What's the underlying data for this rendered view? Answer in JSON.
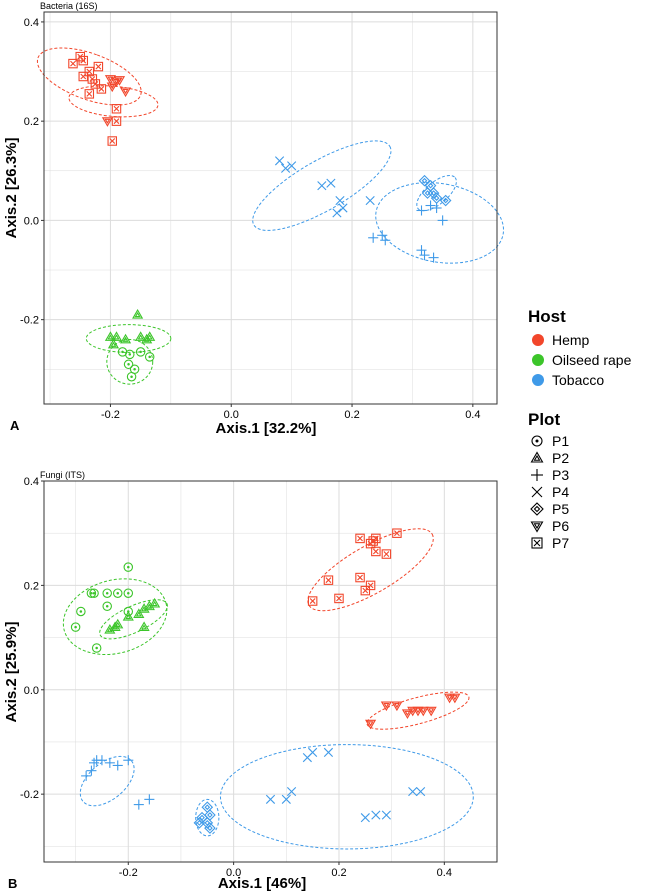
{
  "colors": {
    "hemp": "#F2462B",
    "oilseed": "#3CC52A",
    "tobacco": "#3F9AE8",
    "grid": "#dcdcdc",
    "frame": "#333333"
  },
  "legend": {
    "host_title": "Host",
    "hosts": [
      {
        "name": "Hemp",
        "color": "#F2462B"
      },
      {
        "name": "Oilseed rape",
        "color": "#3CC52A"
      },
      {
        "name": "Tobacco",
        "color": "#3F9AE8"
      }
    ],
    "plot_title": "Plot",
    "plots": [
      {
        "name": "P1",
        "shape": "circle-dot"
      },
      {
        "name": "P2",
        "shape": "triangle-up"
      },
      {
        "name": "P3",
        "shape": "plus"
      },
      {
        "name": "P4",
        "shape": "cross"
      },
      {
        "name": "P5",
        "shape": "diamond-plus"
      },
      {
        "name": "P6",
        "shape": "triangle-down"
      },
      {
        "name": "P7",
        "shape": "square-x"
      }
    ]
  },
  "chart_data": [
    {
      "panel": "A",
      "title": "Bacteria (16S)",
      "type": "scatter",
      "xlabel": "Axis.1   [32.2%]",
      "ylabel": "Axis.2   [26.3%]",
      "xlim": [
        -0.31,
        0.44
      ],
      "ylim": [
        -0.37,
        0.42
      ],
      "xticks": [
        -0.2,
        0.0,
        0.2,
        0.4
      ],
      "yticks": [
        -0.2,
        0.0,
        0.2,
        0.4
      ],
      "xtick_labels": [
        "-0.2",
        "0.0",
        "0.2",
        "0.4"
      ],
      "ytick_labels": [
        "-0.2",
        "0.0",
        "0.2",
        "0.4"
      ],
      "grid": true,
      "ellipses": [
        {
          "host": "Hemp",
          "cx": -0.235,
          "cy": 0.29,
          "rx": 0.038,
          "ry": 0.11,
          "angle": -70
        },
        {
          "host": "Hemp",
          "cx": -0.195,
          "cy": 0.24,
          "rx": 0.025,
          "ry": 0.09,
          "angle": -85
        },
        {
          "host": "Tobacco",
          "cx": 0.15,
          "cy": 0.07,
          "rx": 0.13,
          "ry": 0.05,
          "angle": -30
        },
        {
          "host": "Tobacco",
          "cx": 0.345,
          "cy": -0.005,
          "rx": 0.065,
          "ry": 0.13,
          "angle": -80
        },
        {
          "host": "Tobacco",
          "cx": 0.34,
          "cy": 0.055,
          "rx": 0.04,
          "ry": 0.022,
          "angle": -40
        },
        {
          "host": "Oilseed rape",
          "cx": -0.17,
          "cy": -0.238,
          "rx": 0.07,
          "ry": 0.028,
          "angle": 0
        },
        {
          "host": "Oilseed rape",
          "cx": -0.168,
          "cy": -0.285,
          "rx": 0.038,
          "ry": 0.045,
          "angle": 0
        }
      ],
      "points": [
        {
          "x": -0.262,
          "y": 0.316,
          "host": "Hemp",
          "plot": "P7"
        },
        {
          "x": -0.25,
          "y": 0.33,
          "host": "Hemp",
          "plot": "P7"
        },
        {
          "x": -0.245,
          "y": 0.322,
          "host": "Hemp",
          "plot": "P7"
        },
        {
          "x": -0.235,
          "y": 0.3,
          "host": "Hemp",
          "plot": "P7"
        },
        {
          "x": -0.23,
          "y": 0.285,
          "host": "Hemp",
          "plot": "P7"
        },
        {
          "x": -0.22,
          "y": 0.31,
          "host": "Hemp",
          "plot": "P7"
        },
        {
          "x": -0.225,
          "y": 0.275,
          "host": "Hemp",
          "plot": "P7"
        },
        {
          "x": -0.235,
          "y": 0.255,
          "host": "Hemp",
          "plot": "P7"
        },
        {
          "x": -0.215,
          "y": 0.265,
          "host": "Hemp",
          "plot": "P7"
        },
        {
          "x": -0.245,
          "y": 0.29,
          "host": "Hemp",
          "plot": "P7"
        },
        {
          "x": -0.19,
          "y": 0.225,
          "host": "Hemp",
          "plot": "P7"
        },
        {
          "x": -0.19,
          "y": 0.2,
          "host": "Hemp",
          "plot": "P7"
        },
        {
          "x": -0.197,
          "y": 0.16,
          "host": "Hemp",
          "plot": "P7"
        },
        {
          "x": -0.2,
          "y": 0.285,
          "host": "Hemp",
          "plot": "P6"
        },
        {
          "x": -0.19,
          "y": 0.28,
          "host": "Hemp",
          "plot": "P6"
        },
        {
          "x": -0.185,
          "y": 0.283,
          "host": "Hemp",
          "plot": "P6"
        },
        {
          "x": -0.197,
          "y": 0.27,
          "host": "Hemp",
          "plot": "P6"
        },
        {
          "x": -0.175,
          "y": 0.26,
          "host": "Hemp",
          "plot": "P6"
        },
        {
          "x": -0.205,
          "y": 0.2,
          "host": "Hemp",
          "plot": "P6"
        },
        {
          "x": 0.08,
          "y": 0.12,
          "host": "Tobacco",
          "plot": "P4"
        },
        {
          "x": 0.09,
          "y": 0.105,
          "host": "Tobacco",
          "plot": "P4"
        },
        {
          "x": 0.1,
          "y": 0.11,
          "host": "Tobacco",
          "plot": "P4"
        },
        {
          "x": 0.15,
          "y": 0.07,
          "host": "Tobacco",
          "plot": "P4"
        },
        {
          "x": 0.165,
          "y": 0.075,
          "host": "Tobacco",
          "plot": "P4"
        },
        {
          "x": 0.18,
          "y": 0.04,
          "host": "Tobacco",
          "plot": "P4"
        },
        {
          "x": 0.175,
          "y": 0.015,
          "host": "Tobacco",
          "plot": "P4"
        },
        {
          "x": 0.185,
          "y": 0.025,
          "host": "Tobacco",
          "plot": "P4"
        },
        {
          "x": 0.23,
          "y": 0.04,
          "host": "Tobacco",
          "plot": "P4"
        },
        {
          "x": 0.235,
          "y": -0.035,
          "host": "Tobacco",
          "plot": "P3"
        },
        {
          "x": 0.25,
          "y": -0.03,
          "host": "Tobacco",
          "plot": "P3"
        },
        {
          "x": 0.255,
          "y": -0.04,
          "host": "Tobacco",
          "plot": "P3"
        },
        {
          "x": 0.315,
          "y": 0.02,
          "host": "Tobacco",
          "plot": "P3"
        },
        {
          "x": 0.33,
          "y": 0.03,
          "host": "Tobacco",
          "plot": "P3"
        },
        {
          "x": 0.34,
          "y": 0.025,
          "host": "Tobacco",
          "plot": "P3"
        },
        {
          "x": 0.35,
          "y": 0.0,
          "host": "Tobacco",
          "plot": "P3"
        },
        {
          "x": 0.315,
          "y": -0.06,
          "host": "Tobacco",
          "plot": "P3"
        },
        {
          "x": 0.32,
          "y": -0.07,
          "host": "Tobacco",
          "plot": "P3"
        },
        {
          "x": 0.335,
          "y": -0.075,
          "host": "Tobacco",
          "plot": "P3"
        },
        {
          "x": 0.32,
          "y": 0.08,
          "host": "Tobacco",
          "plot": "P5"
        },
        {
          "x": 0.33,
          "y": 0.07,
          "host": "Tobacco",
          "plot": "P5"
        },
        {
          "x": 0.335,
          "y": 0.055,
          "host": "Tobacco",
          "plot": "P5"
        },
        {
          "x": 0.34,
          "y": 0.045,
          "host": "Tobacco",
          "plot": "P5"
        },
        {
          "x": 0.355,
          "y": 0.04,
          "host": "Tobacco",
          "plot": "P5"
        },
        {
          "x": 0.325,
          "y": 0.055,
          "host": "Tobacco",
          "plot": "P5"
        },
        {
          "x": -0.2,
          "y": -0.235,
          "host": "Oilseed rape",
          "plot": "P2"
        },
        {
          "x": -0.195,
          "y": -0.25,
          "host": "Oilseed rape",
          "plot": "P2"
        },
        {
          "x": -0.19,
          "y": -0.235,
          "host": "Oilseed rape",
          "plot": "P2"
        },
        {
          "x": -0.155,
          "y": -0.19,
          "host": "Oilseed rape",
          "plot": "P2"
        },
        {
          "x": -0.15,
          "y": -0.235,
          "host": "Oilseed rape",
          "plot": "P2"
        },
        {
          "x": -0.14,
          "y": -0.24,
          "host": "Oilseed rape",
          "plot": "P2"
        },
        {
          "x": -0.135,
          "y": -0.235,
          "host": "Oilseed rape",
          "plot": "P2"
        },
        {
          "x": -0.175,
          "y": -0.24,
          "host": "Oilseed rape",
          "plot": "P2"
        },
        {
          "x": -0.18,
          "y": -0.265,
          "host": "Oilseed rape",
          "plot": "P1"
        },
        {
          "x": -0.168,
          "y": -0.27,
          "host": "Oilseed rape",
          "plot": "P1"
        },
        {
          "x": -0.15,
          "y": -0.265,
          "host": "Oilseed rape",
          "plot": "P1"
        },
        {
          "x": -0.135,
          "y": -0.275,
          "host": "Oilseed rape",
          "plot": "P1"
        },
        {
          "x": -0.17,
          "y": -0.29,
          "host": "Oilseed rape",
          "plot": "P1"
        },
        {
          "x": -0.16,
          "y": -0.3,
          "host": "Oilseed rape",
          "plot": "P1"
        },
        {
          "x": -0.165,
          "y": -0.315,
          "host": "Oilseed rape",
          "plot": "P1"
        }
      ]
    },
    {
      "panel": "B",
      "title": "Fungi (ITS)",
      "type": "scatter",
      "xlabel": "Axis.1   [46%]",
      "ylabel": "Axis.2   [25.9%]",
      "xlim": [
        -0.36,
        0.5
      ],
      "ylim": [
        -0.33,
        0.4
      ],
      "xticks": [
        -0.2,
        0.0,
        0.2,
        0.4
      ],
      "yticks": [
        -0.2,
        0.0,
        0.2,
        0.4
      ],
      "xtick_labels": [
        "-0.2",
        "0.0",
        "0.2",
        "0.4"
      ],
      "ytick_labels": [
        "-0.2",
        "0.0",
        "0.2",
        "0.4"
      ],
      "grid": true,
      "ellipses": [
        {
          "host": "Hemp",
          "cx": 0.26,
          "cy": 0.23,
          "rx": 0.135,
          "ry": 0.045,
          "angle": -30
        },
        {
          "host": "Hemp",
          "cx": 0.35,
          "cy": -0.04,
          "rx": 0.1,
          "ry": 0.025,
          "angle": -15
        },
        {
          "host": "Oilseed rape",
          "cx": -0.225,
          "cy": 0.14,
          "rx": 0.1,
          "ry": 0.07,
          "angle": -15
        },
        {
          "host": "Oilseed rape",
          "cx": -0.19,
          "cy": 0.135,
          "rx": 0.07,
          "ry": 0.025,
          "angle": -25
        },
        {
          "host": "Tobacco",
          "cx": -0.24,
          "cy": -0.175,
          "rx": 0.06,
          "ry": 0.035,
          "angle": -40
        },
        {
          "host": "Tobacco",
          "cx": -0.05,
          "cy": -0.245,
          "rx": 0.022,
          "ry": 0.035,
          "angle": 0
        },
        {
          "host": "Tobacco",
          "cx": 0.215,
          "cy": -0.205,
          "rx": 0.24,
          "ry": 0.1,
          "angle": 0
        }
      ],
      "points": [
        {
          "x": 0.15,
          "y": 0.17,
          "host": "Hemp",
          "plot": "P7"
        },
        {
          "x": 0.18,
          "y": 0.21,
          "host": "Hemp",
          "plot": "P7"
        },
        {
          "x": 0.2,
          "y": 0.175,
          "host": "Hemp",
          "plot": "P7"
        },
        {
          "x": 0.24,
          "y": 0.215,
          "host": "Hemp",
          "plot": "P7"
        },
        {
          "x": 0.25,
          "y": 0.19,
          "host": "Hemp",
          "plot": "P7"
        },
        {
          "x": 0.26,
          "y": 0.2,
          "host": "Hemp",
          "plot": "P7"
        },
        {
          "x": 0.26,
          "y": 0.28,
          "host": "Hemp",
          "plot": "P7"
        },
        {
          "x": 0.265,
          "y": 0.285,
          "host": "Hemp",
          "plot": "P7"
        },
        {
          "x": 0.27,
          "y": 0.29,
          "host": "Hemp",
          "plot": "P7"
        },
        {
          "x": 0.27,
          "y": 0.265,
          "host": "Hemp",
          "plot": "P7"
        },
        {
          "x": 0.29,
          "y": 0.26,
          "host": "Hemp",
          "plot": "P7"
        },
        {
          "x": 0.31,
          "y": 0.3,
          "host": "Hemp",
          "plot": "P7"
        },
        {
          "x": 0.24,
          "y": 0.29,
          "host": "Hemp",
          "plot": "P7"
        },
        {
          "x": 0.26,
          "y": -0.065,
          "host": "Hemp",
          "plot": "P6"
        },
        {
          "x": 0.29,
          "y": -0.03,
          "host": "Hemp",
          "plot": "P6"
        },
        {
          "x": 0.31,
          "y": -0.03,
          "host": "Hemp",
          "plot": "P6"
        },
        {
          "x": 0.33,
          "y": -0.045,
          "host": "Hemp",
          "plot": "P6"
        },
        {
          "x": 0.34,
          "y": -0.04,
          "host": "Hemp",
          "plot": "P6"
        },
        {
          "x": 0.35,
          "y": -0.04,
          "host": "Hemp",
          "plot": "P6"
        },
        {
          "x": 0.36,
          "y": -0.04,
          "host": "Hemp",
          "plot": "P6"
        },
        {
          "x": 0.375,
          "y": -0.04,
          "host": "Hemp",
          "plot": "P6"
        },
        {
          "x": 0.41,
          "y": -0.015,
          "host": "Hemp",
          "plot": "P6"
        },
        {
          "x": 0.42,
          "y": -0.015,
          "host": "Hemp",
          "plot": "P6"
        },
        {
          "x": -0.3,
          "y": 0.12,
          "host": "Oilseed rape",
          "plot": "P1"
        },
        {
          "x": -0.29,
          "y": 0.15,
          "host": "Oilseed rape",
          "plot": "P1"
        },
        {
          "x": -0.27,
          "y": 0.185,
          "host": "Oilseed rape",
          "plot": "P1"
        },
        {
          "x": -0.265,
          "y": 0.185,
          "host": "Oilseed rape",
          "plot": "P1"
        },
        {
          "x": -0.24,
          "y": 0.185,
          "host": "Oilseed rape",
          "plot": "P1"
        },
        {
          "x": -0.24,
          "y": 0.16,
          "host": "Oilseed rape",
          "plot": "P1"
        },
        {
          "x": -0.22,
          "y": 0.185,
          "host": "Oilseed rape",
          "plot": "P1"
        },
        {
          "x": -0.2,
          "y": 0.235,
          "host": "Oilseed rape",
          "plot": "P1"
        },
        {
          "x": -0.2,
          "y": 0.185,
          "host": "Oilseed rape",
          "plot": "P1"
        },
        {
          "x": -0.26,
          "y": 0.08,
          "host": "Oilseed rape",
          "plot": "P1"
        },
        {
          "x": -0.2,
          "y": 0.15,
          "host": "Oilseed rape",
          "plot": "P1"
        },
        {
          "x": -0.235,
          "y": 0.115,
          "host": "Oilseed rape",
          "plot": "P2"
        },
        {
          "x": -0.22,
          "y": 0.125,
          "host": "Oilseed rape",
          "plot": "P2"
        },
        {
          "x": -0.2,
          "y": 0.14,
          "host": "Oilseed rape",
          "plot": "P2"
        },
        {
          "x": -0.18,
          "y": 0.145,
          "host": "Oilseed rape",
          "plot": "P2"
        },
        {
          "x": -0.17,
          "y": 0.155,
          "host": "Oilseed rape",
          "plot": "P2"
        },
        {
          "x": -0.16,
          "y": 0.16,
          "host": "Oilseed rape",
          "plot": "P2"
        },
        {
          "x": -0.15,
          "y": 0.165,
          "host": "Oilseed rape",
          "plot": "P2"
        },
        {
          "x": -0.17,
          "y": 0.12,
          "host": "Oilseed rape",
          "plot": "P2"
        },
        {
          "x": -0.225,
          "y": 0.12,
          "host": "Oilseed rape",
          "plot": "P2"
        },
        {
          "x": -0.28,
          "y": -0.165,
          "host": "Tobacco",
          "plot": "P3"
        },
        {
          "x": -0.27,
          "y": -0.155,
          "host": "Tobacco",
          "plot": "P3"
        },
        {
          "x": -0.265,
          "y": -0.14,
          "host": "Tobacco",
          "plot": "P3"
        },
        {
          "x": -0.26,
          "y": -0.135,
          "host": "Tobacco",
          "plot": "P3"
        },
        {
          "x": -0.25,
          "y": -0.135,
          "host": "Tobacco",
          "plot": "P3"
        },
        {
          "x": -0.235,
          "y": -0.14,
          "host": "Tobacco",
          "plot": "P3"
        },
        {
          "x": -0.22,
          "y": -0.145,
          "host": "Tobacco",
          "plot": "P3"
        },
        {
          "x": -0.2,
          "y": -0.135,
          "host": "Tobacco",
          "plot": "P3"
        },
        {
          "x": -0.18,
          "y": -0.22,
          "host": "Tobacco",
          "plot": "P3"
        },
        {
          "x": -0.16,
          "y": -0.21,
          "host": "Tobacco",
          "plot": "P3"
        },
        {
          "x": -0.05,
          "y": -0.225,
          "host": "Tobacco",
          "plot": "P5"
        },
        {
          "x": -0.045,
          "y": -0.24,
          "host": "Tobacco",
          "plot": "P5"
        },
        {
          "x": -0.06,
          "y": -0.245,
          "host": "Tobacco",
          "plot": "P5"
        },
        {
          "x": -0.05,
          "y": -0.255,
          "host": "Tobacco",
          "plot": "P5"
        },
        {
          "x": -0.045,
          "y": -0.265,
          "host": "Tobacco",
          "plot": "P5"
        },
        {
          "x": -0.065,
          "y": -0.255,
          "host": "Tobacco",
          "plot": "P5"
        },
        {
          "x": 0.07,
          "y": -0.21,
          "host": "Tobacco",
          "plot": "P4"
        },
        {
          "x": 0.1,
          "y": -0.21,
          "host": "Tobacco",
          "plot": "P4"
        },
        {
          "x": 0.11,
          "y": -0.195,
          "host": "Tobacco",
          "plot": "P4"
        },
        {
          "x": 0.14,
          "y": -0.13,
          "host": "Tobacco",
          "plot": "P4"
        },
        {
          "x": 0.15,
          "y": -0.12,
          "host": "Tobacco",
          "plot": "P4"
        },
        {
          "x": 0.18,
          "y": -0.12,
          "host": "Tobacco",
          "plot": "P4"
        },
        {
          "x": 0.25,
          "y": -0.245,
          "host": "Tobacco",
          "plot": "P4"
        },
        {
          "x": 0.27,
          "y": -0.24,
          "host": "Tobacco",
          "plot": "P4"
        },
        {
          "x": 0.29,
          "y": -0.24,
          "host": "Tobacco",
          "plot": "P4"
        },
        {
          "x": 0.34,
          "y": -0.195,
          "host": "Tobacco",
          "plot": "P4"
        },
        {
          "x": 0.355,
          "y": -0.195,
          "host": "Tobacco",
          "plot": "P4"
        }
      ]
    }
  ]
}
